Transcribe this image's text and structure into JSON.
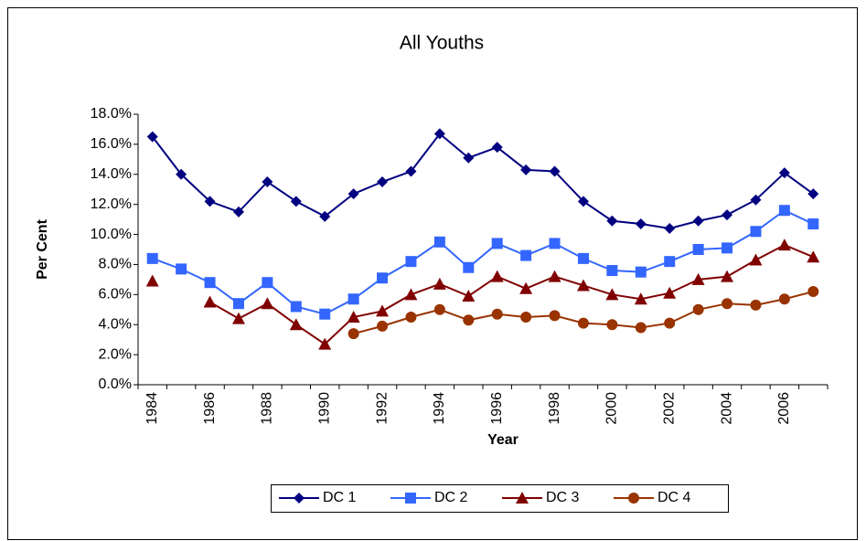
{
  "chart_data": {
    "type": "line",
    "title": "All Youths",
    "x_label": "Year",
    "y_label": "Per Cent",
    "categories": [
      "1984",
      null,
      "1986",
      null,
      "1988",
      null,
      "1990",
      null,
      "1992",
      null,
      "1994",
      null,
      "1996",
      null,
      "1998",
      null,
      "2000",
      null,
      "2002",
      null,
      "2004",
      null,
      "2006",
      null
    ],
    "series": [
      {
        "name": "DC 1",
        "color": "#000080",
        "marker": "diamond",
        "values": [
          16.5,
          14.0,
          12.2,
          11.5,
          13.5,
          12.2,
          11.2,
          12.7,
          13.5,
          14.2,
          16.7,
          15.1,
          15.8,
          14.3,
          14.2,
          12.2,
          10.9,
          10.7,
          10.4,
          10.9,
          11.3,
          12.3,
          14.1,
          12.7
        ]
      },
      {
        "name": "DC 2",
        "color": "#3366FF",
        "marker": "square",
        "values": [
          8.4,
          7.7,
          6.8,
          5.4,
          6.8,
          5.2,
          4.7,
          5.7,
          7.1,
          8.2,
          9.5,
          7.8,
          9.4,
          8.6,
          9.4,
          8.4,
          7.6,
          7.5,
          8.2,
          9.0,
          9.1,
          10.2,
          11.6,
          10.7
        ]
      },
      {
        "name": "DC 3",
        "color": "#800000",
        "marker": "triangle",
        "values": [
          6.9,
          null,
          5.5,
          4.4,
          5.4,
          4.0,
          2.7,
          4.5,
          4.9,
          6.0,
          6.7,
          5.9,
          7.2,
          6.4,
          7.2,
          6.6,
          6.0,
          5.7,
          6.1,
          7.0,
          7.2,
          8.3,
          9.3,
          8.5
        ]
      },
      {
        "name": "DC 4",
        "color": "#993300",
        "marker": "circle",
        "values": [
          null,
          null,
          null,
          null,
          null,
          null,
          null,
          3.4,
          3.9,
          4.5,
          5.0,
          4.3,
          4.7,
          4.5,
          4.6,
          4.1,
          4.0,
          3.8,
          4.1,
          5.0,
          5.4,
          5.3,
          5.7,
          6.2
        ]
      }
    ],
    "ylim": [
      0,
      18
    ],
    "yticks": [
      {
        "value": 0,
        "label": "0.0%"
      },
      {
        "value": 2,
        "label": "2.0%"
      },
      {
        "value": 4,
        "label": "4.0%"
      },
      {
        "value": 6,
        "label": "6.0%"
      },
      {
        "value": 8,
        "label": "8.0%"
      },
      {
        "value": 10,
        "label": "10.0%"
      },
      {
        "value": 12,
        "label": "12.0%"
      },
      {
        "value": 14,
        "label": "14.0%"
      },
      {
        "value": 16,
        "label": "16.0%"
      },
      {
        "value": 18,
        "label": "18.0%"
      }
    ]
  }
}
